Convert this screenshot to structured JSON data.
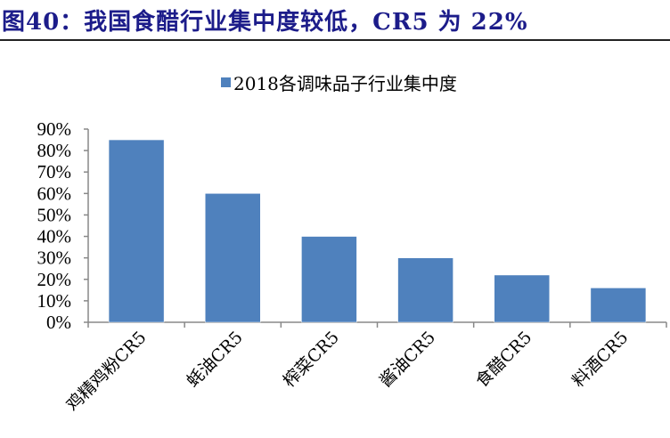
{
  "title": "图40：我国食醋行业集中度较低，CR5 为 22%",
  "colors": {
    "bar": "#4f81bd",
    "title": "#1c1c8a"
  },
  "chart_data": {
    "type": "bar",
    "title": "",
    "legend": {
      "entries": [
        "2018各调味品子行业集中度"
      ],
      "placement": "top-center"
    },
    "categories": [
      "鸡精鸡粉CR5",
      "蚝油CR5",
      "榨菜CR5",
      "酱油CR5",
      "食醋CR5",
      "料酒CR5"
    ],
    "series": [
      {
        "name": "2018各调味品子行业集中度",
        "values": [
          85,
          60,
          40,
          30,
          22,
          16
        ]
      }
    ],
    "ylim": [
      0,
      90
    ],
    "yticks": [
      "0%",
      "10%",
      "20%",
      "30%",
      "40%",
      "50%",
      "60%",
      "70%",
      "80%",
      "90%"
    ],
    "grid": false,
    "xlabel": "",
    "ylabel": ""
  }
}
